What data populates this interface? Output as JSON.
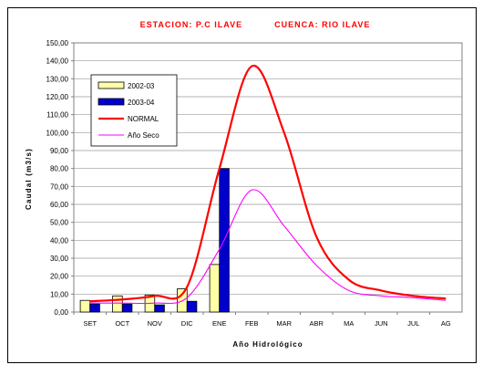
{
  "chart_data": {
    "type": "bar",
    "title": "ESTACION: P.C ILAVE          CUENCA: RIO ILAVE",
    "xlabel": "Año Hidrológico",
    "ylabel": "Caudal (m3/s)",
    "ylim": [
      0,
      150
    ],
    "ytick_step": 10,
    "ytick_labels": [
      "0,00",
      "10,00",
      "20,00",
      "30,00",
      "40,00",
      "50,00",
      "60,00",
      "70,00",
      "80,00",
      "90,00",
      "100,00",
      "110,00",
      "120,00",
      "130,00",
      "140,00",
      "150,00"
    ],
    "categories": [
      "SET",
      "OCT",
      "NOV",
      "DIC",
      "ENE",
      "FEB",
      "MAR",
      "ABR",
      "MA",
      "JUN",
      "JUL",
      "AG"
    ],
    "grid": true,
    "legend_position": "top-left",
    "series": [
      {
        "name": "2002-03",
        "kind": "bar",
        "color": "#ffffa8",
        "values": [
          6.5,
          9.0,
          9.5,
          13.0,
          26.5,
          null,
          null,
          null,
          null,
          null,
          null,
          null
        ]
      },
      {
        "name": "2003-04",
        "kind": "bar",
        "color": "#0000cc",
        "values": [
          4.5,
          4.5,
          4.0,
          6.0,
          80.0,
          null,
          null,
          null,
          null,
          null,
          null,
          null
        ]
      },
      {
        "name": "NORMAL",
        "kind": "line",
        "color": "#ff0000",
        "values": [
          6.0,
          7.0,
          9.0,
          14.0,
          80.0,
          137.0,
          100.0,
          42.0,
          18.0,
          12.0,
          9.0,
          7.5
        ]
      },
      {
        "name": "Año Seco",
        "kind": "line",
        "color": "#ff00ff",
        "values": [
          5.0,
          5.0,
          5.0,
          8.0,
          35.0,
          68.0,
          48.0,
          26.0,
          12.0,
          9.0,
          8.0,
          6.5
        ]
      }
    ]
  }
}
